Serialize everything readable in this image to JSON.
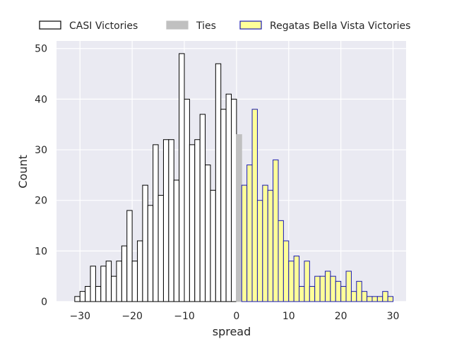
{
  "chart_data": {
    "type": "bar",
    "title": "",
    "xlabel": "spread",
    "ylabel": "Count",
    "xlim": [
      -34.5,
      32.5
    ],
    "ylim": [
      0,
      51.5
    ],
    "xticks": [
      -30,
      -20,
      -10,
      0,
      10,
      20,
      30
    ],
    "yticks": [
      0,
      10,
      20,
      30,
      40,
      50
    ],
    "grid": true,
    "legend_position": "top",
    "bin_width": 1,
    "series": [
      {
        "name": "CASI Victories",
        "fill": "#ffffff",
        "edge": "#000000",
        "x": [
          -31,
          -30,
          -29,
          -28,
          -27,
          -26,
          -25,
          -24,
          -23,
          -22,
          -21,
          -20,
          -19,
          -18,
          -17,
          -16,
          -15,
          -14,
          -13,
          -12,
          -11,
          -10,
          -9,
          -8,
          -7,
          -6,
          -5,
          -4,
          -3,
          -2,
          -1
        ],
        "values": [
          1,
          2,
          3,
          7,
          3,
          7,
          8,
          5,
          8,
          11,
          18,
          8,
          12,
          23,
          19,
          31,
          21,
          32,
          32,
          24,
          49,
          40,
          31,
          32,
          37,
          27,
          22,
          47,
          38,
          41,
          40
        ]
      },
      {
        "name": "Ties",
        "fill": "#c0c0c0",
        "edge": "#c0c0c0",
        "x": [
          0
        ],
        "values": [
          33
        ]
      },
      {
        "name": "Regatas Bella Vista Victories",
        "fill": "#ffff99",
        "edge": "#1a1ab0",
        "x": [
          1,
          2,
          3,
          4,
          5,
          6,
          7,
          8,
          9,
          10,
          11,
          12,
          13,
          14,
          15,
          16,
          17,
          18,
          19,
          20,
          21,
          22,
          23,
          24,
          25,
          26,
          27,
          28,
          29
        ],
        "values": [
          23,
          27,
          38,
          20,
          23,
          22,
          28,
          16,
          12,
          8,
          9,
          3,
          8,
          3,
          5,
          5,
          6,
          5,
          4,
          3,
          6,
          2,
          4,
          2,
          1,
          1,
          1,
          2,
          1
        ]
      }
    ]
  },
  "colors": {
    "plot_background": "#eaeaf2",
    "grid": "#ffffff"
  }
}
